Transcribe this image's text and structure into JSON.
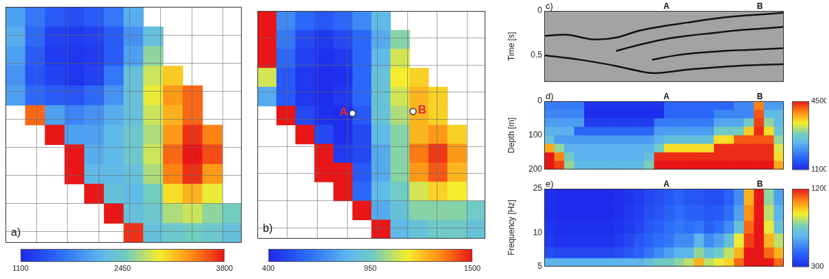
{
  "chart_data": [
    {
      "type": "heatmap",
      "panel_label": "a)",
      "xlim": [
        0,
        7.6
      ],
      "ylim": [
        8.4,
        0
      ],
      "xticks": [
        1,
        2,
        3,
        4,
        5,
        6,
        7
      ],
      "yticks": [
        1,
        2,
        3,
        4,
        5,
        6,
        7,
        8
      ],
      "grid": true,
      "tick_labels": false,
      "x_edges": [
        0,
        0.633,
        1.267,
        1.9,
        2.533,
        3.167,
        3.8,
        4.433,
        5.067,
        5.7,
        6.333,
        6.967,
        7.6
      ],
      "y_edges": [
        0,
        0.7,
        1.4,
        2.1,
        2.8,
        3.5,
        4.2,
        4.9,
        5.6,
        6.3,
        7,
        7.7,
        8.4
      ],
      "cells": [
        [
          2000,
          1700,
          1500,
          1400,
          1500,
          1700,
          2100,
          null,
          null,
          null,
          null,
          null
        ],
        [
          2100,
          1600,
          1300,
          1250,
          1300,
          1500,
          1900,
          2300,
          null,
          null,
          null,
          null
        ],
        [
          2000,
          1500,
          1250,
          1200,
          1250,
          1500,
          2000,
          2600,
          null,
          null,
          null,
          null
        ],
        [
          1900,
          1450,
          1300,
          1200,
          1300,
          1700,
          2300,
          2800,
          3100,
          null,
          null,
          null
        ],
        [
          2000,
          1600,
          1500,
          1450,
          1600,
          1900,
          2300,
          2900,
          3300,
          3500,
          null,
          null
        ],
        [
          null,
          3500,
          2000,
          1800,
          1900,
          2100,
          2300,
          2800,
          3200,
          3500,
          null,
          null
        ],
        [
          null,
          null,
          3800,
          2000,
          2000,
          2200,
          2400,
          2700,
          3300,
          3700,
          3400,
          null
        ],
        [
          null,
          null,
          null,
          3800,
          2100,
          2200,
          2400,
          2800,
          3500,
          3800,
          3600,
          null
        ],
        [
          null,
          null,
          null,
          3800,
          2200,
          2200,
          2300,
          2700,
          3400,
          3700,
          3300,
          null
        ],
        [
          null,
          null,
          null,
          null,
          3800,
          2300,
          2200,
          2500,
          3000,
          3200,
          2900,
          null
        ],
        [
          null,
          null,
          null,
          null,
          null,
          3800,
          2300,
          2400,
          2700,
          2800,
          2600,
          2500
        ],
        [
          null,
          null,
          null,
          null,
          null,
          null,
          3700,
          2300,
          2400,
          2500,
          2400,
          2300
        ]
      ],
      "colorbar": {
        "range": [
          1100,
          3800
        ],
        "ticks": [
          1100,
          2450,
          3800
        ]
      }
    },
    {
      "type": "heatmap",
      "panel_label": "b)",
      "xlim": [
        0,
        7.6
      ],
      "ylim": [
        8.4,
        0
      ],
      "xticks": [
        1,
        2,
        3,
        4,
        5,
        6,
        7
      ],
      "yticks": [
        1,
        2,
        3,
        4,
        5,
        6,
        7,
        8
      ],
      "grid": true,
      "tick_labels": false,
      "x_edges": [
        0,
        0.633,
        1.267,
        1.9,
        2.533,
        3.167,
        3.8,
        4.433,
        5.067,
        5.7,
        6.333,
        6.967,
        7.6
      ],
      "y_edges": [
        0,
        0.7,
        1.4,
        2.1,
        2.8,
        3.5,
        4.2,
        4.9,
        5.6,
        6.3,
        7,
        7.7,
        8.4
      ],
      "cells": [
        [
          1500,
          700,
          600,
          550,
          600,
          700,
          850,
          null,
          null,
          null,
          null,
          null
        ],
        [
          1500,
          650,
          500,
          450,
          500,
          600,
          800,
          1000,
          null,
          null,
          null,
          null
        ],
        [
          1500,
          600,
          480,
          430,
          450,
          600,
          850,
          1100,
          null,
          null,
          null,
          null
        ],
        [
          1100,
          550,
          450,
          420,
          430,
          600,
          900,
          1150,
          1200,
          null,
          null,
          null
        ],
        [
          800,
          550,
          450,
          420,
          450,
          600,
          900,
          1100,
          1250,
          1200,
          null,
          null
        ],
        [
          null,
          1500,
          500,
          430,
          420,
          550,
          900,
          1050,
          1250,
          1200,
          null,
          null
        ],
        [
          null,
          null,
          1500,
          500,
          420,
          500,
          850,
          1000,
          1250,
          1300,
          1200,
          null
        ],
        [
          null,
          null,
          null,
          1500,
          450,
          500,
          800,
          1000,
          1350,
          1450,
          1300,
          null
        ],
        [
          null,
          null,
          null,
          1500,
          1500,
          550,
          800,
          1000,
          1300,
          1400,
          1250,
          null
        ],
        [
          null,
          null,
          null,
          null,
          1500,
          600,
          850,
          950,
          1100,
          1200,
          1150,
          null
        ],
        [
          null,
          null,
          null,
          null,
          null,
          1500,
          800,
          900,
          1000,
          1000,
          1000,
          950
        ],
        [
          null,
          null,
          null,
          null,
          null,
          null,
          1500,
          850,
          900,
          950,
          950,
          900
        ]
      ],
      "points": [
        {
          "label": "A",
          "x": 3.17,
          "y": 3.78
        },
        {
          "label": "B",
          "x": 5.19,
          "y": 3.71
        }
      ],
      "colorbar": {
        "range": [
          400,
          1500
        ],
        "ticks": [
          400,
          950,
          1500
        ]
      }
    },
    {
      "type": "line",
      "panel_label": "c)",
      "y_label": "Time [s]",
      "xlim": [
        0,
        100
      ],
      "ylim": [
        0.8,
        0
      ],
      "yticks": [
        0,
        0.5
      ],
      "grid": false,
      "tick_labels": "y",
      "markers": [
        {
          "label": "A",
          "x": 51
        },
        {
          "label": "B",
          "x": 90
        }
      ],
      "reflectors": [
        [
          [
            0,
            0.28
          ],
          [
            10,
            0.27
          ],
          [
            20,
            0.32
          ],
          [
            30,
            0.3
          ],
          [
            40,
            0.22
          ],
          [
            50,
            0.17
          ],
          [
            60,
            0.13
          ],
          [
            70,
            0.09
          ],
          [
            80,
            0.06
          ],
          [
            90,
            0.04
          ],
          [
            100,
            0.02
          ]
        ],
        [
          [
            30,
            0.45
          ],
          [
            40,
            0.38
          ],
          [
            50,
            0.32
          ],
          [
            60,
            0.28
          ],
          [
            70,
            0.25
          ],
          [
            80,
            0.22
          ],
          [
            90,
            0.2
          ],
          [
            100,
            0.18
          ]
        ],
        [
          [
            45,
            0.55
          ],
          [
            55,
            0.5
          ],
          [
            65,
            0.47
          ],
          [
            75,
            0.45
          ],
          [
            85,
            0.44
          ],
          [
            100,
            0.42
          ]
        ],
        [
          [
            0,
            0.5
          ],
          [
            15,
            0.55
          ],
          [
            30,
            0.62
          ],
          [
            45,
            0.7
          ],
          [
            60,
            0.66
          ],
          [
            80,
            0.62
          ],
          [
            100,
            0.6
          ]
        ]
      ]
    },
    {
      "type": "heatmap",
      "panel_label": "d)",
      "y_label": "Depth [m]",
      "xlim": [
        0,
        100
      ],
      "ylim": [
        200,
        0
      ],
      "yticks": [
        0,
        100,
        200
      ],
      "grid": false,
      "tick_labels": "y",
      "markers": [
        {
          "label": "A",
          "x": 51
        },
        {
          "label": "B",
          "x": 90
        }
      ],
      "x_edges": [
        0,
        4.17,
        8.33,
        12.5,
        16.67,
        20.83,
        25,
        29.17,
        33.33,
        37.5,
        41.67,
        45.83,
        50,
        54.17,
        58.33,
        62.5,
        66.67,
        70.83,
        75,
        79.17,
        83.33,
        87.5,
        91.67,
        95.83,
        100
      ],
      "y_edges": [
        0,
        25,
        50,
        75,
        100,
        125,
        150,
        175,
        200
      ],
      "cells": [
        [
          1900,
          1900,
          1900,
          1900,
          1200,
          1200,
          1200,
          1200,
          1200,
          1200,
          1200,
          1200,
          1700,
          1700,
          1700,
          1700,
          1700,
          1700,
          1700,
          2000,
          2000,
          4000,
          2200,
          2200
        ],
        [
          2000,
          2000,
          2000,
          2000,
          1150,
          1150,
          1150,
          1150,
          1150,
          1150,
          1150,
          1150,
          1700,
          1700,
          1700,
          1700,
          1700,
          2000,
          2000,
          2000,
          2000,
          4200,
          2500,
          2500
        ],
        [
          2200,
          2200,
          2200,
          2200,
          1300,
          1300,
          1300,
          1300,
          1300,
          1300,
          1300,
          1900,
          1900,
          1900,
          1900,
          1900,
          1900,
          2300,
          2300,
          2300,
          2800,
          4300,
          3000,
          2500
        ],
        [
          2400,
          2400,
          2400,
          1700,
          1700,
          1700,
          1700,
          1700,
          1700,
          1700,
          1700,
          2200,
          2200,
          2200,
          2200,
          2200,
          2200,
          2800,
          2800,
          2800,
          3600,
          4400,
          3500,
          2700
        ],
        [
          2600,
          2200,
          2200,
          2200,
          2200,
          2200,
          2200,
          2200,
          2200,
          2200,
          2200,
          2400,
          2600,
          2600,
          2600,
          2600,
          2600,
          3500,
          3500,
          4200,
          4200,
          4200,
          4200,
          3000
        ],
        [
          3800,
          3000,
          2400,
          2400,
          2400,
          2400,
          2400,
          2400,
          2400,
          2400,
          2400,
          2800,
          3500,
          3500,
          3500,
          3500,
          3500,
          4400,
          4400,
          4400,
          4400,
          4400,
          4400,
          3300
        ],
        [
          4500,
          4000,
          2800,
          2400,
          2400,
          2400,
          2400,
          2400,
          2400,
          2400,
          2600,
          4400,
          4400,
          4400,
          4400,
          4400,
          4400,
          4400,
          4400,
          4400,
          4400,
          4400,
          4400,
          3500
        ],
        [
          4500,
          4300,
          3000,
          2500,
          2500,
          2500,
          2500,
          2500,
          2500,
          2500,
          2900,
          4500,
          4500,
          4500,
          4500,
          4500,
          4500,
          4500,
          4500,
          4500,
          4500,
          4500,
          4500,
          3800
        ]
      ],
      "colorbar": {
        "range": [
          1100,
          4500
        ],
        "ticks": [
          1100,
          4500
        ]
      }
    },
    {
      "type": "heatmap",
      "panel_label": "e)",
      "y_label": "Frequency [Hz]",
      "log": "y",
      "xlim": [
        0,
        100
      ],
      "ylim": [
        5,
        25
      ],
      "yticks": [
        5,
        10,
        25
      ],
      "grid": false,
      "tick_labels": "y",
      "markers": [
        {
          "label": "A",
          "x": 51
        },
        {
          "label": "B",
          "x": 90
        }
      ],
      "x_edges": [
        0,
        4.17,
        8.33,
        12.5,
        16.67,
        20.83,
        25,
        29.17,
        33.33,
        37.5,
        41.67,
        45.83,
        50,
        54.17,
        58.33,
        62.5,
        66.67,
        70.83,
        75,
        79.17,
        83.33,
        87.5,
        91.67,
        95.83,
        100
      ],
      "y_edges": [
        5,
        6,
        7.5,
        10,
        13,
        18,
        25
      ],
      "cells": [
        [
          650,
          650,
          650,
          650,
          650,
          650,
          650,
          650,
          650,
          650,
          700,
          750,
          750,
          800,
          850,
          1000,
          850,
          900,
          950,
          1100,
          1200,
          1200,
          1200,
          1100
        ],
        [
          400,
          380,
          380,
          380,
          380,
          380,
          380,
          400,
          420,
          450,
          500,
          550,
          600,
          650,
          650,
          800,
          700,
          750,
          850,
          1000,
          1200,
          1200,
          1100,
          1000
        ],
        [
          350,
          330,
          330,
          330,
          330,
          330,
          330,
          350,
          380,
          420,
          450,
          480,
          500,
          550,
          550,
          650,
          550,
          600,
          700,
          900,
          1150,
          1200,
          1000,
          850
        ],
        [
          330,
          320,
          320,
          320,
          320,
          320,
          320,
          330,
          350,
          380,
          420,
          450,
          480,
          500,
          480,
          500,
          450,
          480,
          550,
          700,
          1100,
          1200,
          900,
          700
        ],
        [
          320,
          310,
          310,
          310,
          310,
          310,
          310,
          320,
          340,
          360,
          400,
          420,
          450,
          480,
          450,
          450,
          420,
          430,
          480,
          600,
          1050,
          1200,
          850,
          650
        ],
        [
          320,
          310,
          310,
          310,
          310,
          310,
          310,
          320,
          330,
          350,
          380,
          400,
          420,
          450,
          420,
          420,
          400,
          400,
          450,
          550,
          1000,
          1200,
          800,
          600
        ]
      ],
      "colorbar": {
        "range": [
          300,
          1200
        ],
        "ticks": [
          300,
          1200
        ]
      }
    }
  ]
}
